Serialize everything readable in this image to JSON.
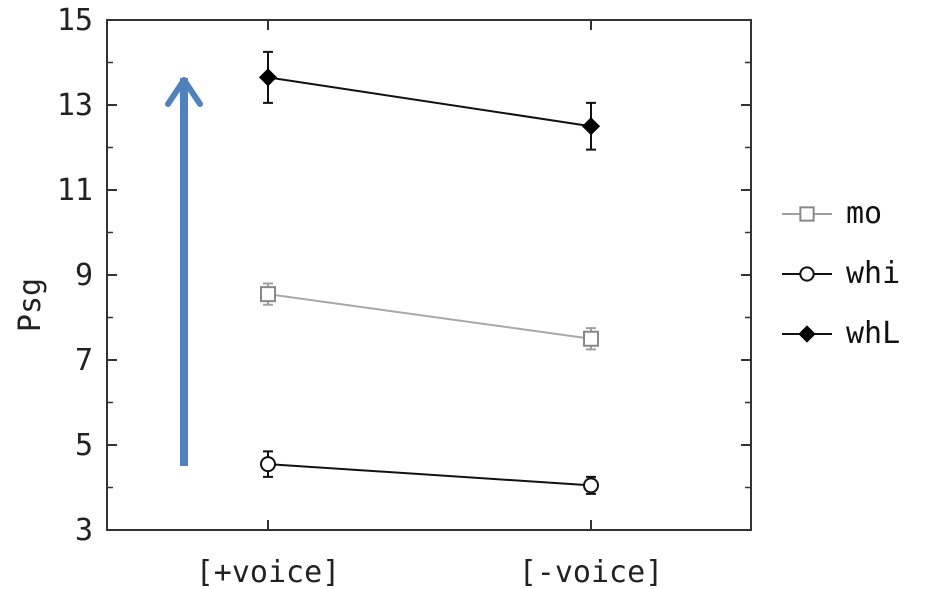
{
  "chart_data": {
    "type": "line",
    "categories": [
      "[+voice]",
      "[-voice]"
    ],
    "ylabel": "Psg",
    "xlabel": "",
    "title": "",
    "ylim": [
      3,
      15
    ],
    "yticks": [
      "3",
      "5",
      "7",
      "9",
      "11",
      "13",
      "15"
    ],
    "series": [
      {
        "name": "mo",
        "marker": "square-open",
        "color": "#a0a0a0",
        "values": [
          8.55,
          7.5
        ],
        "errors": [
          0.25,
          0.25
        ]
      },
      {
        "name": "whi",
        "marker": "circle-open",
        "color": "#111111",
        "values": [
          4.55,
          4.05
        ],
        "errors": [
          0.3,
          0.2
        ]
      },
      {
        "name": "whL",
        "marker": "diamond-filled",
        "color": "#000000",
        "values": [
          13.65,
          12.5
        ],
        "errors": [
          0.6,
          0.55
        ]
      }
    ],
    "legend_position": "right",
    "grid": false,
    "annotations": [
      {
        "type": "arrow",
        "direction": "up",
        "color": "#4f81bd"
      }
    ]
  }
}
